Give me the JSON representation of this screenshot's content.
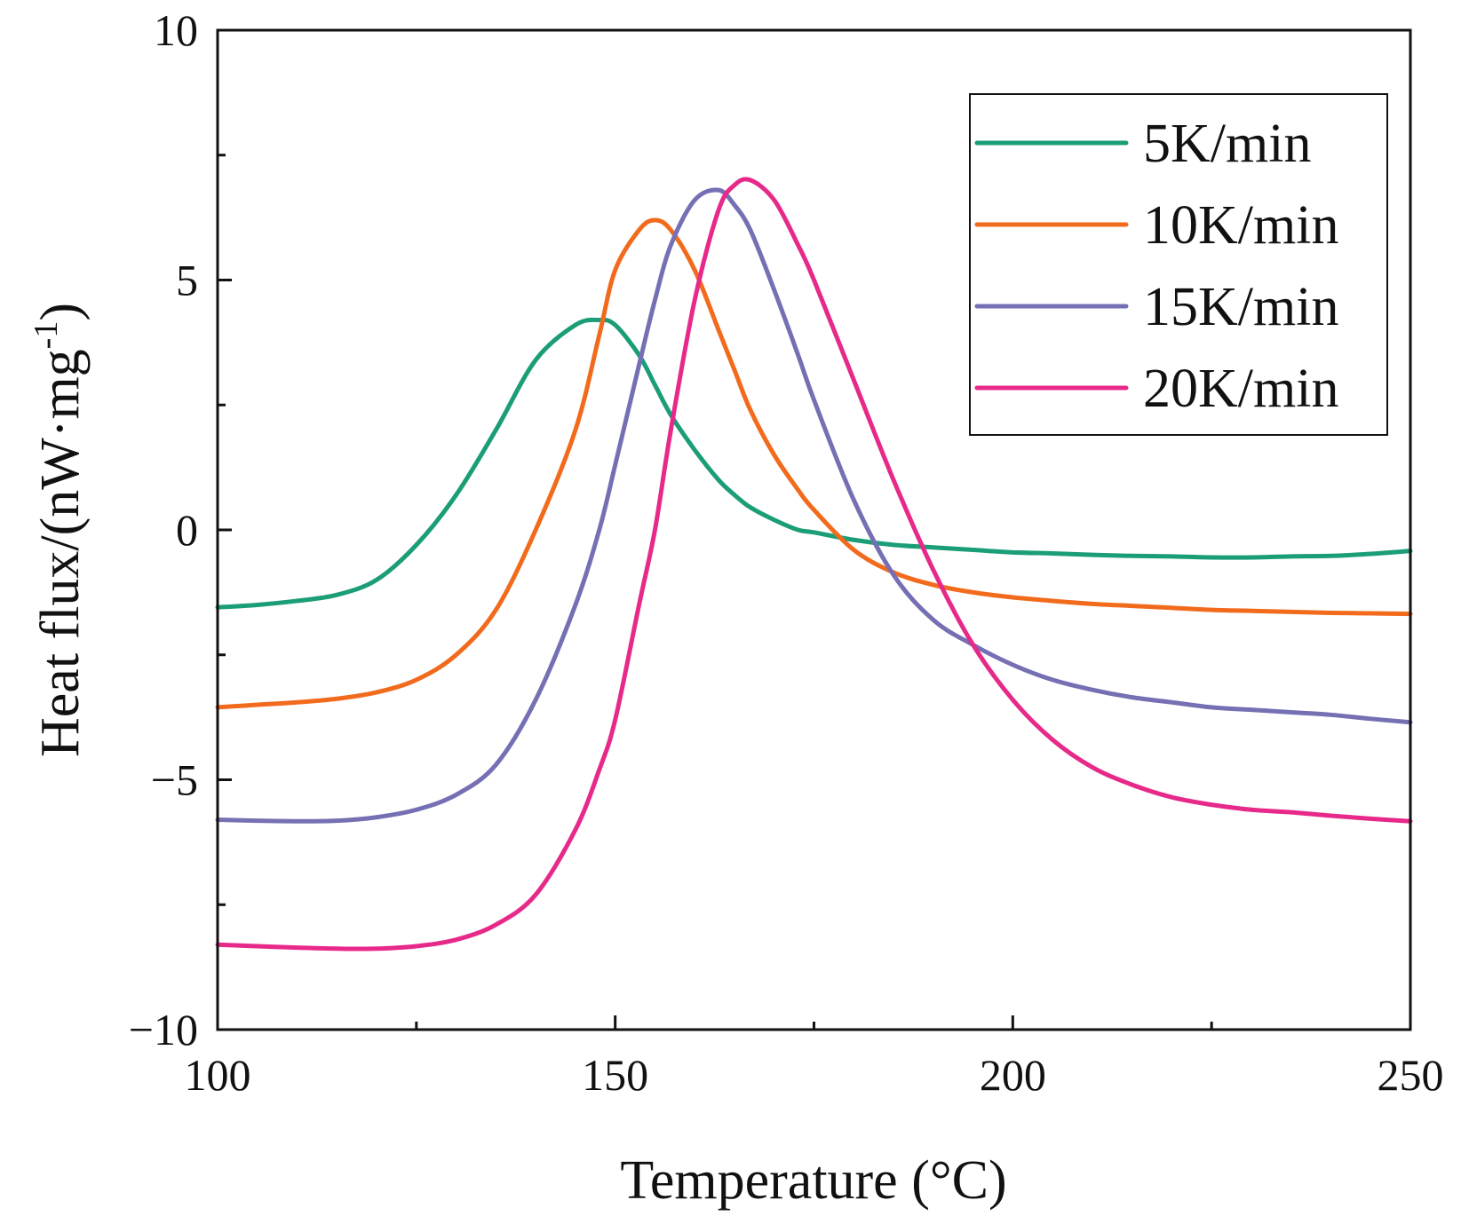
{
  "chart_data": {
    "type": "line",
    "title": "",
    "xlabel": "Temperature (°C)",
    "ylabel_main": "Heat flux/(nW·mg",
    "ylabel_sup": "-1",
    "ylabel_close": ")",
    "xlim": [
      100,
      250
    ],
    "ylim": [
      -10,
      10
    ],
    "x_major_ticks": [
      100,
      150,
      200,
      250
    ],
    "x_major_tick_labels": [
      "100",
      "150",
      "200",
      "250"
    ],
    "x_minor_ticks": [
      125,
      175,
      225
    ],
    "y_major_ticks": [
      -10,
      -5,
      0,
      5,
      10
    ],
    "y_major_tick_labels": [
      "−10",
      "−5",
      "0",
      "5",
      "10"
    ],
    "y_minor_ticks": [
      -7.5,
      -2.5,
      2.5,
      7.5
    ],
    "grid": false,
    "legend_position": "top-right",
    "x": [
      100,
      105,
      110,
      115,
      120,
      125,
      130,
      135,
      140,
      145,
      148,
      150,
      153,
      155,
      157,
      160,
      163,
      165,
      167,
      170,
      173,
      175,
      180,
      185,
      190,
      195,
      200,
      205,
      210,
      215,
      220,
      225,
      230,
      235,
      240,
      245,
      250
    ],
    "series": [
      {
        "name": "5K/min",
        "color": "#1b9e77",
        "values": [
          -1.55,
          -1.5,
          -1.42,
          -1.3,
          -1.0,
          -0.3,
          0.7,
          2.0,
          3.4,
          4.1,
          4.2,
          4.1,
          3.5,
          2.9,
          2.3,
          1.6,
          1.0,
          0.7,
          0.45,
          0.2,
          0.0,
          -0.05,
          -0.2,
          -0.3,
          -0.35,
          -0.4,
          -0.45,
          -0.47,
          -0.5,
          -0.52,
          -0.53,
          -0.55,
          -0.55,
          -0.53,
          -0.52,
          -0.48,
          -0.42
        ]
      },
      {
        "name": "10K/min",
        "color": "#f26b1d",
        "values": [
          -3.55,
          -3.5,
          -3.45,
          -3.38,
          -3.25,
          -3.0,
          -2.5,
          -1.6,
          0.0,
          2.0,
          3.9,
          5.2,
          6.0,
          6.2,
          6.0,
          5.2,
          4.0,
          3.2,
          2.4,
          1.5,
          0.8,
          0.4,
          -0.4,
          -0.85,
          -1.1,
          -1.25,
          -1.35,
          -1.42,
          -1.48,
          -1.52,
          -1.56,
          -1.6,
          -1.62,
          -1.64,
          -1.66,
          -1.67,
          -1.68
        ]
      },
      {
        "name": "15K/min",
        "color": "#7570b3",
        "values": [
          -5.8,
          -5.82,
          -5.83,
          -5.82,
          -5.75,
          -5.6,
          -5.3,
          -4.7,
          -3.4,
          -1.5,
          0.0,
          1.3,
          3.3,
          4.6,
          5.7,
          6.6,
          6.8,
          6.5,
          6.0,
          4.8,
          3.5,
          2.6,
          0.6,
          -0.9,
          -1.8,
          -2.3,
          -2.7,
          -3.0,
          -3.2,
          -3.35,
          -3.45,
          -3.55,
          -3.6,
          -3.65,
          -3.7,
          -3.78,
          -3.85
        ]
      },
      {
        "name": "20K/min",
        "color": "#e7298a",
        "values": [
          -8.3,
          -8.33,
          -8.36,
          -8.38,
          -8.38,
          -8.33,
          -8.2,
          -7.9,
          -7.3,
          -6.0,
          -4.8,
          -3.8,
          -1.5,
          0.0,
          2.0,
          4.6,
          6.4,
          6.9,
          7.0,
          6.6,
          5.7,
          5.0,
          3.0,
          1.0,
          -0.8,
          -2.3,
          -3.4,
          -4.2,
          -4.75,
          -5.1,
          -5.35,
          -5.5,
          -5.6,
          -5.65,
          -5.72,
          -5.78,
          -5.83
        ]
      }
    ]
  }
}
